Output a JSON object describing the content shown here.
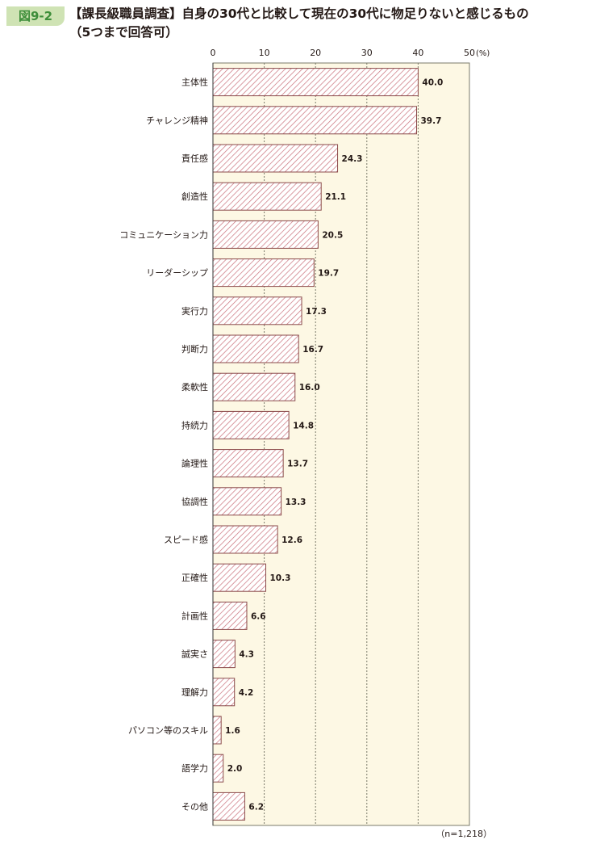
{
  "figure": {
    "label": "図9-2",
    "title_line1": "【課長級職員調査】自身の30代と比較して現在の30代に物足りないと感じるもの",
    "title_line2": "（5つまで回答可）",
    "sample_note": "（n=1,218）"
  },
  "colors": {
    "plot_bg": "#fdf8e4",
    "bar_stroke": "#8a4a4a",
    "bar_hatch": "#c9707a",
    "grid": "#7a7a6a",
    "label_bg": "#cfe3b4",
    "label_text": "#3e8e3a"
  },
  "chart_data": {
    "type": "bar",
    "orientation": "horizontal",
    "title": "【課長級職員調査】自身の30代と比較して現在の30代に物足りないと感じるもの（5つまで回答可）",
    "categories": [
      "主体性",
      "チャレンジ精神",
      "責任感",
      "創造性",
      "コミュニケーション力",
      "リーダーシップ",
      "実行力",
      "判断力",
      "柔軟性",
      "持続力",
      "論理性",
      "協調性",
      "スピード感",
      "正確性",
      "計画性",
      "誠実さ",
      "理解力",
      "パソコン等のスキル",
      "語学力",
      "その他"
    ],
    "values": [
      40.0,
      39.7,
      24.3,
      21.1,
      20.5,
      19.7,
      17.3,
      16.7,
      16.0,
      14.8,
      13.7,
      13.3,
      12.6,
      10.3,
      6.6,
      4.3,
      4.2,
      1.6,
      2.0,
      6.2
    ],
    "value_labels": [
      "40.0",
      "39.7",
      "24.3",
      "21.1",
      "20.5",
      "19.7",
      "17.3",
      "16.7",
      "16.0",
      "14.8",
      "13.7",
      "13.3",
      "12.6",
      "10.3",
      "6.6",
      "4.3",
      "4.2",
      "1.6",
      "2.0",
      "6.2"
    ],
    "xlim": [
      0,
      50
    ],
    "ticks": [
      "0",
      "10",
      "20",
      "30",
      "40",
      "50"
    ],
    "unit_label": "(%)",
    "xlabel": "",
    "ylabel": "",
    "grid": true
  }
}
